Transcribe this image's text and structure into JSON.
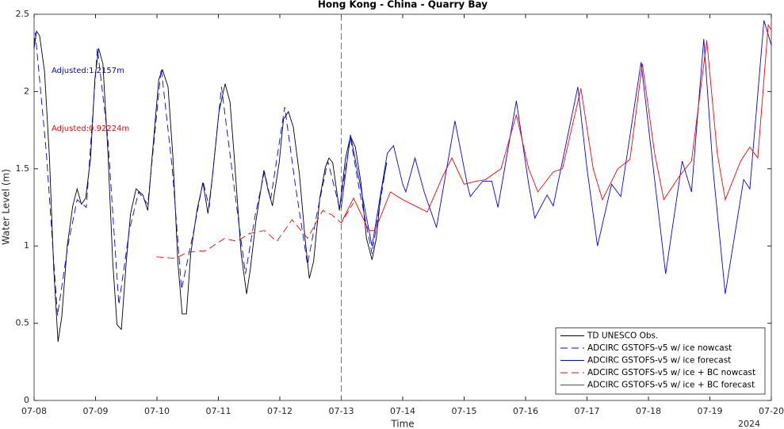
{
  "chart_data": {
    "type": "line",
    "title": "Hong Kong - China - Quarry Bay",
    "xlabel": "Time",
    "ylabel": "Water Level (m)",
    "year_label": "2024",
    "xlim": [
      0,
      12
    ],
    "ylim": [
      0,
      2.5
    ],
    "xticks": [
      {
        "value": 0,
        "label": "07-08"
      },
      {
        "value": 1,
        "label": "07-09"
      },
      {
        "value": 2,
        "label": "07-10"
      },
      {
        "value": 3,
        "label": "07-11"
      },
      {
        "value": 4,
        "label": "07-12"
      },
      {
        "value": 5,
        "label": "07-13"
      },
      {
        "value": 6,
        "label": "07-14"
      },
      {
        "value": 7,
        "label": "07-15"
      },
      {
        "value": 8,
        "label": "07-16"
      },
      {
        "value": 9,
        "label": "07-17"
      },
      {
        "value": 10,
        "label": "07-18"
      },
      {
        "value": 11,
        "label": "07-19"
      },
      {
        "value": 12,
        "label": "07-20"
      }
    ],
    "yticks": [
      0,
      0.5,
      1,
      1.5,
      2,
      2.5
    ],
    "vline_x": 5,
    "legend": "lower right",
    "annotations": [
      {
        "text": "Adjusted:1.2157m",
        "color": "#0000ff"
      },
      {
        "text": "Adjusted:0.92224m",
        "color": "#ff0000"
      }
    ],
    "series": [
      {
        "name": "TD UNESCO Obs.",
        "color": "#000000",
        "dash": false,
        "x": [
          0,
          0.04,
          0.09,
          0.17,
          0.25,
          0.32,
          0.39,
          0.45,
          0.54,
          0.63,
          0.7,
          0.77,
          0.84,
          0.92,
          0.99,
          1.05,
          1.12,
          1.2,
          1.28,
          1.35,
          1.42,
          1.5,
          1.57,
          1.66,
          1.77,
          1.85,
          1.92,
          2.03,
          2.09,
          2.18,
          2.26,
          2.34,
          2.41,
          2.48,
          2.55,
          2.65,
          2.75,
          2.83,
          2.9,
          3.01,
          3.11,
          3.19,
          3.26,
          3.37,
          3.46,
          3.52,
          3.61,
          3.74,
          3.81,
          3.88,
          3.99,
          4.06,
          4.14,
          4.22,
          4.32,
          4.41,
          4.48,
          4.55,
          4.65,
          4.74,
          4.8,
          4.86,
          4.97,
          5.07,
          5.15,
          5.23,
          5.32,
          5.41,
          5.5,
          5.57,
          5.65,
          5.74
        ],
        "values": [
          2.28,
          2.39,
          2.36,
          2.13,
          1.57,
          0.85,
          0.38,
          0.54,
          1.0,
          1.26,
          1.37,
          1.27,
          1.31,
          1.57,
          2.08,
          2.28,
          2.18,
          1.62,
          0.9,
          0.49,
          0.46,
          0.9,
          1.21,
          1.37,
          1.33,
          1.23,
          1.57,
          2.08,
          2.14,
          2.03,
          1.57,
          0.9,
          0.56,
          0.56,
          0.95,
          1.23,
          1.41,
          1.21,
          1.44,
          1.87,
          2.05,
          1.93,
          1.57,
          0.95,
          0.69,
          0.85,
          1.16,
          1.49,
          1.36,
          1.26,
          1.54,
          1.82,
          1.87,
          1.77,
          1.46,
          1.05,
          0.79,
          0.9,
          1.31,
          1.51,
          1.57,
          1.54,
          1.23,
          1.57,
          1.71,
          1.64,
          1.41,
          1.05,
          0.91,
          1.05,
          1.36,
          1.54
        ]
      },
      {
        "name": "ADCIRC GSTOFS-v5 w/ ice nowcast",
        "color": "#0000ff",
        "dash": true,
        "x": [
          0,
          0.02,
          0.2,
          0.38,
          0.55,
          0.7,
          0.85,
          1.03,
          1.2,
          1.38,
          1.55,
          1.7,
          1.85,
          2.07,
          2.25,
          2.4,
          2.6,
          2.75,
          2.85,
          3.05,
          3.25,
          3.44,
          3.6,
          3.75,
          3.85,
          4.08,
          4.25,
          4.45,
          4.6,
          4.78,
          4.97,
          5.15,
          5.3,
          5.5,
          5.72
        ],
        "values": [
          2.3,
          2.38,
          1.6,
          0.55,
          1.0,
          1.3,
          1.25,
          2.28,
          1.7,
          0.62,
          1.1,
          1.35,
          1.27,
          2.15,
          1.5,
          0.72,
          1.1,
          1.42,
          1.25,
          2.03,
          1.4,
          0.82,
          1.2,
          1.48,
          1.3,
          1.9,
          1.4,
          0.88,
          1.2,
          1.55,
          1.25,
          1.7,
          1.35,
          0.95,
          1.5
        ]
      },
      {
        "name": "ADCIRC GSTOFS-v5 w/ ice forecast",
        "color": "#0000ff",
        "dash": false,
        "x": [
          5.0,
          5.15,
          5.5,
          5.75,
          5.85,
          6.0,
          6.05,
          6.2,
          6.35,
          6.55,
          6.85,
          7.05,
          7.1,
          7.3,
          7.45,
          7.55,
          7.85,
          8.05,
          8.15,
          8.35,
          8.45,
          8.85,
          9.0,
          9.17,
          9.4,
          9.55,
          9.88,
          10.05,
          10.28,
          10.55,
          10.7,
          10.9,
          11.05,
          11.25,
          11.55,
          11.65,
          11.88,
          12.0
        ],
        "values": [
          1.25,
          1.72,
          1.0,
          1.6,
          1.65,
          1.4,
          1.35,
          1.57,
          1.35,
          1.12,
          1.81,
          1.4,
          1.32,
          1.42,
          1.42,
          1.25,
          1.94,
          1.4,
          1.18,
          1.33,
          1.26,
          2.03,
          1.5,
          1.0,
          1.4,
          1.32,
          2.19,
          1.6,
          0.82,
          1.55,
          1.35,
          2.34,
          1.5,
          0.69,
          1.43,
          1.37,
          2.46,
          2.3
        ]
      },
      {
        "name": "ADCIRC GSTOFS-v5 w/ ice + BC nowcast",
        "color": "#ff0000",
        "dash": true,
        "x": [
          1.99,
          2.3,
          2.5,
          2.8,
          3.1,
          3.3,
          3.5,
          3.75,
          3.95,
          4.2,
          4.45,
          4.7,
          4.85,
          5.0,
          5.2
        ],
        "values": [
          0.93,
          0.92,
          0.96,
          0.97,
          1.05,
          1.03,
          1.08,
          1.1,
          1.03,
          1.17,
          1.05,
          1.23,
          1.2,
          1.15,
          1.28
        ]
      },
      {
        "name": "ADCIRC GSTOFS-v5 w/ ice + BC forecast",
        "color": "#ff0000",
        "dash": false,
        "x": [
          5.0,
          5.2,
          5.45,
          5.55,
          5.8,
          6.0,
          6.1,
          6.4,
          6.65,
          6.8,
          7.0,
          7.2,
          7.35,
          7.6,
          7.85,
          8.05,
          8.2,
          8.45,
          8.6,
          8.9,
          9.1,
          9.25,
          9.5,
          9.7,
          9.9,
          10.1,
          10.25,
          10.5,
          10.7,
          10.95,
          11.12,
          11.25,
          11.5,
          11.65,
          11.78,
          11.95,
          12.0
        ],
        "values": [
          1.15,
          1.31,
          1.1,
          1.1,
          1.35,
          1.3,
          1.28,
          1.22,
          1.45,
          1.57,
          1.4,
          1.42,
          1.43,
          1.5,
          1.85,
          1.5,
          1.35,
          1.48,
          1.5,
          2.02,
          1.5,
          1.3,
          1.5,
          1.56,
          2.18,
          1.6,
          1.3,
          1.45,
          1.55,
          2.33,
          1.6,
          1.3,
          1.55,
          1.64,
          1.57,
          2.43,
          2.4
        ]
      }
    ]
  }
}
